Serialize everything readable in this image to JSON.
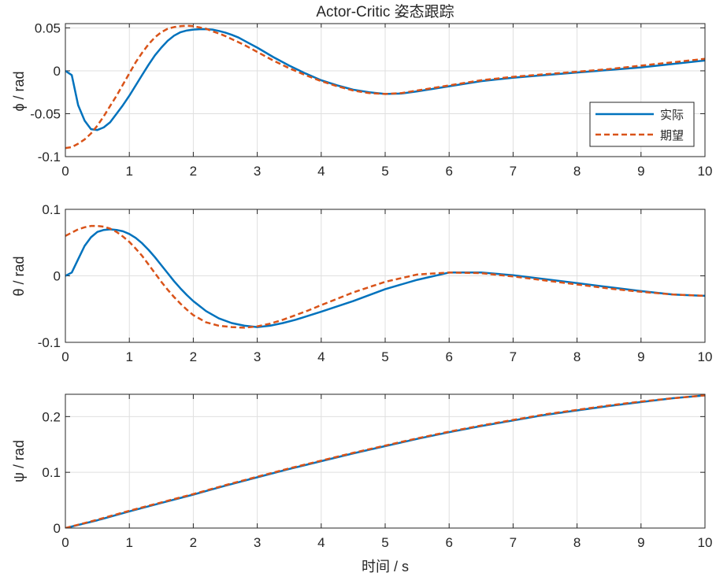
{
  "colors": {
    "actual": "#0072BD",
    "desired": "#D95319",
    "axis": "#262626",
    "grid": "#dfdfdf"
  },
  "chart_data": [
    {
      "type": "line",
      "title": "Actor-Critic 姿态跟踪",
      "xlabel": "",
      "ylabel": "ϕ / rad",
      "xlim": [
        0,
        10
      ],
      "ylim": [
        -0.1,
        0.055
      ],
      "xticks": [
        "0",
        "1",
        "2",
        "3",
        "4",
        "5",
        "6",
        "7",
        "8",
        "9",
        "10"
      ],
      "yticks": [
        {
          "value": -0.1,
          "label": "-0.1"
        },
        {
          "value": -0.05,
          "label": "-0.05"
        },
        {
          "value": 0,
          "label": "0"
        },
        {
          "value": 0.05,
          "label": "0.05"
        }
      ],
      "grid": true,
      "legend": {
        "position": "right",
        "entries": [
          "实际",
          "期望"
        ]
      },
      "x": [
        0,
        0.1,
        0.2,
        0.3,
        0.4,
        0.5,
        0.6,
        0.7,
        0.8,
        0.9,
        1.0,
        1.1,
        1.2,
        1.3,
        1.4,
        1.5,
        1.6,
        1.7,
        1.8,
        1.9,
        2.0,
        2.1,
        2.2,
        2.3,
        2.4,
        2.5,
        2.6,
        2.7,
        2.8,
        2.9,
        3.0,
        3.25,
        3.5,
        3.75,
        4.0,
        4.25,
        4.5,
        4.75,
        5.0,
        5.25,
        5.5,
        5.75,
        6.0,
        6.5,
        7.0,
        7.5,
        8.0,
        8.5,
        9.0,
        9.5,
        10.0
      ],
      "series": [
        {
          "name": "实际",
          "style": "solid",
          "values": [
            0,
            -0.005,
            -0.04,
            -0.058,
            -0.068,
            -0.069,
            -0.066,
            -0.06,
            -0.05,
            -0.04,
            -0.029,
            -0.017,
            -0.005,
            0.007,
            0.018,
            0.027,
            0.035,
            0.041,
            0.045,
            0.047,
            0.048,
            0.0485,
            0.0485,
            0.048,
            0.0465,
            0.0445,
            0.042,
            0.039,
            0.035,
            0.031,
            0.027,
            0.016,
            0.006,
            -0.003,
            -0.011,
            -0.017,
            -0.022,
            -0.025,
            -0.027,
            -0.0265,
            -0.024,
            -0.021,
            -0.018,
            -0.012,
            -0.008,
            -0.005,
            -0.002,
            0.001,
            0.004,
            0.008,
            0.012
          ]
        },
        {
          "name": "期望",
          "style": "dashed",
          "values": [
            -0.09,
            -0.089,
            -0.085,
            -0.08,
            -0.073,
            -0.064,
            -0.053,
            -0.041,
            -0.029,
            -0.016,
            -0.003,
            0.01,
            0.021,
            0.031,
            0.039,
            0.045,
            0.049,
            0.051,
            0.052,
            0.0525,
            0.052,
            0.0505,
            0.049,
            0.046,
            0.0435,
            0.0405,
            0.037,
            0.0335,
            0.03,
            0.026,
            0.022,
            0.012,
            0.003,
            -0.005,
            -0.012,
            -0.018,
            -0.023,
            -0.026,
            -0.027,
            -0.026,
            -0.023,
            -0.02,
            -0.017,
            -0.011,
            -0.007,
            -0.004,
            -0.001,
            0.002,
            0.006,
            0.01,
            0.014
          ]
        }
      ]
    },
    {
      "type": "line",
      "title": "",
      "xlabel": "",
      "ylabel": "θ / rad",
      "xlim": [
        0,
        10
      ],
      "ylim": [
        -0.1,
        0.1
      ],
      "xticks": [
        "0",
        "1",
        "2",
        "3",
        "4",
        "5",
        "6",
        "7",
        "8",
        "9",
        "10"
      ],
      "yticks": [
        {
          "value": -0.1,
          "label": "-0.1"
        },
        {
          "value": 0,
          "label": "0"
        },
        {
          "value": 0.1,
          "label": "0.1"
        }
      ],
      "grid": true,
      "x": [
        0,
        0.1,
        0.2,
        0.3,
        0.4,
        0.5,
        0.6,
        0.7,
        0.8,
        0.9,
        1.0,
        1.1,
        1.2,
        1.3,
        1.4,
        1.5,
        1.6,
        1.7,
        1.8,
        1.9,
        2.0,
        2.2,
        2.4,
        2.6,
        2.8,
        3.0,
        3.2,
        3.4,
        3.6,
        3.8,
        4.0,
        4.5,
        5.0,
        5.5,
        6.0,
        6.5,
        7.0,
        7.5,
        8.0,
        8.5,
        9.0,
        9.5,
        10.0
      ],
      "series": [
        {
          "name": "实际",
          "style": "solid",
          "values": [
            0,
            0.005,
            0.025,
            0.045,
            0.058,
            0.066,
            0.069,
            0.07,
            0.069,
            0.067,
            0.063,
            0.057,
            0.049,
            0.039,
            0.028,
            0.016,
            0.004,
            -0.008,
            -0.019,
            -0.029,
            -0.038,
            -0.053,
            -0.064,
            -0.071,
            -0.075,
            -0.077,
            -0.075,
            -0.071,
            -0.066,
            -0.06,
            -0.054,
            -0.038,
            -0.02,
            -0.006,
            0.005,
            0.005,
            0.001,
            -0.005,
            -0.011,
            -0.017,
            -0.023,
            -0.028,
            -0.03
          ]
        },
        {
          "name": "期望",
          "style": "dashed",
          "values": [
            0.06,
            0.065,
            0.07,
            0.073,
            0.075,
            0.075,
            0.074,
            0.071,
            0.066,
            0.059,
            0.051,
            0.041,
            0.03,
            0.017,
            0.004,
            -0.009,
            -0.021,
            -0.032,
            -0.042,
            -0.051,
            -0.059,
            -0.07,
            -0.075,
            -0.077,
            -0.078,
            -0.076,
            -0.072,
            -0.066,
            -0.059,
            -0.052,
            -0.044,
            -0.025,
            -0.009,
            0.002,
            0.005,
            0.004,
            -0.001,
            -0.007,
            -0.013,
            -0.019,
            -0.024,
            -0.028,
            -0.03
          ]
        }
      ]
    },
    {
      "type": "line",
      "title": "",
      "xlabel": "时间 / s",
      "ylabel": "ψ / rad",
      "xlim": [
        0,
        10
      ],
      "ylim": [
        0,
        0.24
      ],
      "xticks": [
        "0",
        "1",
        "2",
        "3",
        "4",
        "5",
        "6",
        "7",
        "8",
        "9",
        "10"
      ],
      "yticks": [
        {
          "value": 0,
          "label": "0"
        },
        {
          "value": 0.1,
          "label": "0.1"
        },
        {
          "value": 0.2,
          "label": "0.2"
        }
      ],
      "grid": true,
      "x": [
        0,
        0.5,
        1,
        1.5,
        2,
        2.5,
        3,
        3.5,
        4,
        4.5,
        5,
        5.5,
        6,
        6.5,
        7,
        7.5,
        8,
        8.5,
        9,
        9.5,
        10
      ],
      "series": [
        {
          "name": "实际",
          "style": "solid",
          "values": [
            0,
            0.014,
            0.03,
            0.045,
            0.06,
            0.076,
            0.091,
            0.106,
            0.12,
            0.134,
            0.147,
            0.16,
            0.172,
            0.183,
            0.193,
            0.203,
            0.211,
            0.219,
            0.226,
            0.233,
            0.238
          ]
        },
        {
          "name": "期望",
          "style": "dashed",
          "values": [
            0,
            0.015,
            0.031,
            0.046,
            0.061,
            0.077,
            0.092,
            0.107,
            0.121,
            0.135,
            0.148,
            0.161,
            0.173,
            0.184,
            0.194,
            0.204,
            0.212,
            0.22,
            0.227,
            0.233,
            0.238
          ]
        }
      ]
    }
  ]
}
